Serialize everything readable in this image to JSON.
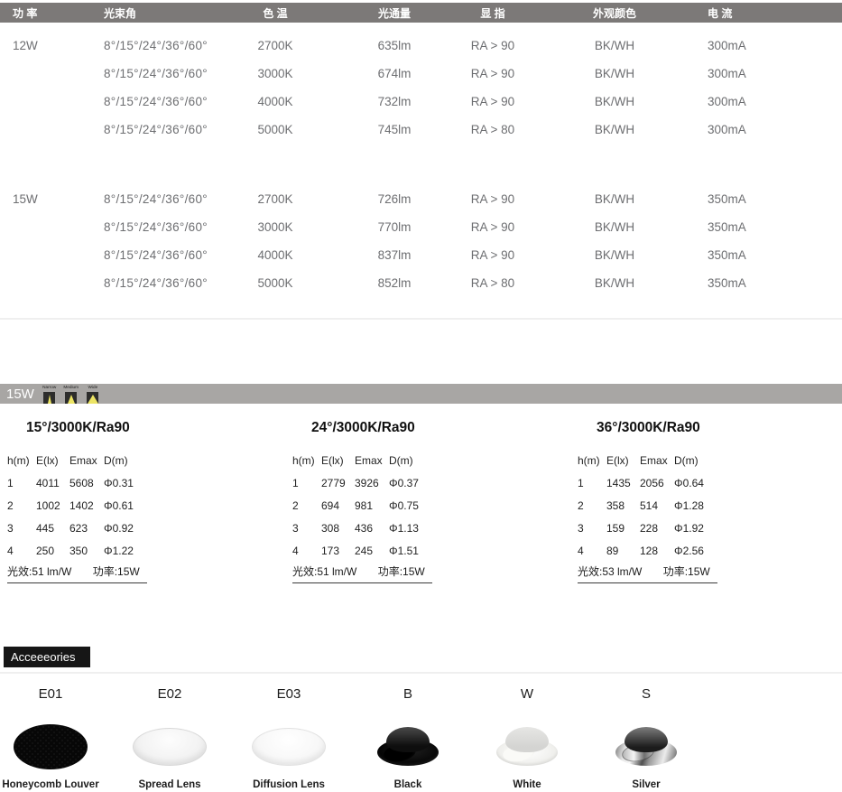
{
  "colors": {
    "header_bar": "#7C7978",
    "beam_bar": "#A8A6A4",
    "beam_yellow": "#ECE465",
    "spec_text": "#6D6E71",
    "accessory_title_bg": "#161616"
  },
  "spec": {
    "headers": [
      "功 率",
      "光束角",
      "色 温",
      "光通量",
      "显 指",
      "外观颜色",
      "电 流"
    ],
    "groups": [
      {
        "power": "12W",
        "rows": [
          [
            "8°/15°/24°/36°/60°",
            "2700K",
            "635lm",
            "RA > 90",
            "BK/WH",
            "300mA"
          ],
          [
            "8°/15°/24°/36°/60°",
            "3000K",
            "674lm",
            "RA > 90",
            "BK/WH",
            "300mA"
          ],
          [
            "8°/15°/24°/36°/60°",
            "4000K",
            "732lm",
            "RA > 90",
            "BK/WH",
            "300mA"
          ],
          [
            "8°/15°/24°/36°/60°",
            "5000K",
            "745lm",
            "RA > 80",
            "BK/WH",
            "300mA"
          ]
        ]
      },
      {
        "power": "15W",
        "rows": [
          [
            "8°/15°/24°/36°/60°",
            "2700K",
            "726lm",
            "RA > 90",
            "BK/WH",
            "350mA"
          ],
          [
            "8°/15°/24°/36°/60°",
            "3000K",
            "770lm",
            "RA > 90",
            "BK/WH",
            "350mA"
          ],
          [
            "8°/15°/24°/36°/60°",
            "4000K",
            "837lm",
            "RA > 90",
            "BK/WH",
            "350mA"
          ],
          [
            "8°/15°/24°/36°/60°",
            "5000K",
            "852lm",
            "RA > 80",
            "BK/WH",
            "350mA"
          ]
        ]
      }
    ]
  },
  "beam_bar": {
    "label": "15W",
    "beams": [
      {
        "label": "Narrow"
      },
      {
        "label": "Medium"
      },
      {
        "label": "Wide"
      }
    ]
  },
  "photometric_tables": [
    {
      "title": "15°/3000K/Ra90",
      "headers": [
        "h(m)",
        "E(lx)",
        "Emax",
        "D(m)"
      ],
      "rows": [
        [
          "1",
          "4011",
          "5608",
          "Φ0.31"
        ],
        [
          "2",
          "1002",
          "1402",
          "Φ0.61"
        ],
        [
          "3",
          "445",
          "623",
          "Φ0.92"
        ],
        [
          "4",
          "250",
          "350",
          "Φ1.22"
        ]
      ],
      "footer_efficacy": "光效:51 lm/W",
      "footer_power": "功率:15W"
    },
    {
      "title": "24°/3000K/Ra90",
      "headers": [
        "h(m)",
        "E(lx)",
        "Emax",
        "D(m)"
      ],
      "rows": [
        [
          "1",
          "2779",
          "3926",
          "Φ0.37"
        ],
        [
          "2",
          "694",
          "981",
          "Φ0.75"
        ],
        [
          "3",
          "308",
          "436",
          "Φ1.13"
        ],
        [
          "4",
          "173",
          "245",
          "Φ1.51"
        ]
      ],
      "footer_efficacy": "光效:51 lm/W",
      "footer_power": "功率:15W"
    },
    {
      "title": "36°/3000K/Ra90",
      "headers": [
        "h(m)",
        "E(lx)",
        "Emax",
        "D(m)"
      ],
      "rows": [
        [
          "1",
          "1435",
          "2056",
          "Φ0.64"
        ],
        [
          "2",
          "358",
          "514",
          "Φ1.28"
        ],
        [
          "3",
          "159",
          "228",
          "Φ1.92"
        ],
        [
          "4",
          "89",
          "128",
          "Φ2.56"
        ]
      ],
      "footer_efficacy": "光效:53 lm/W",
      "footer_power": "功率:15W"
    }
  ],
  "accessories": {
    "title": "Acceeeories",
    "items": [
      {
        "code": "E01",
        "caption": "Honeycomb Louver"
      },
      {
        "code": "E02",
        "caption": "Spread Lens"
      },
      {
        "code": "E03",
        "caption": "Diffusion Lens"
      },
      {
        "code": "B",
        "caption": "Black"
      },
      {
        "code": "W",
        "caption": "White"
      },
      {
        "code": "S",
        "caption": "Silver"
      }
    ]
  }
}
